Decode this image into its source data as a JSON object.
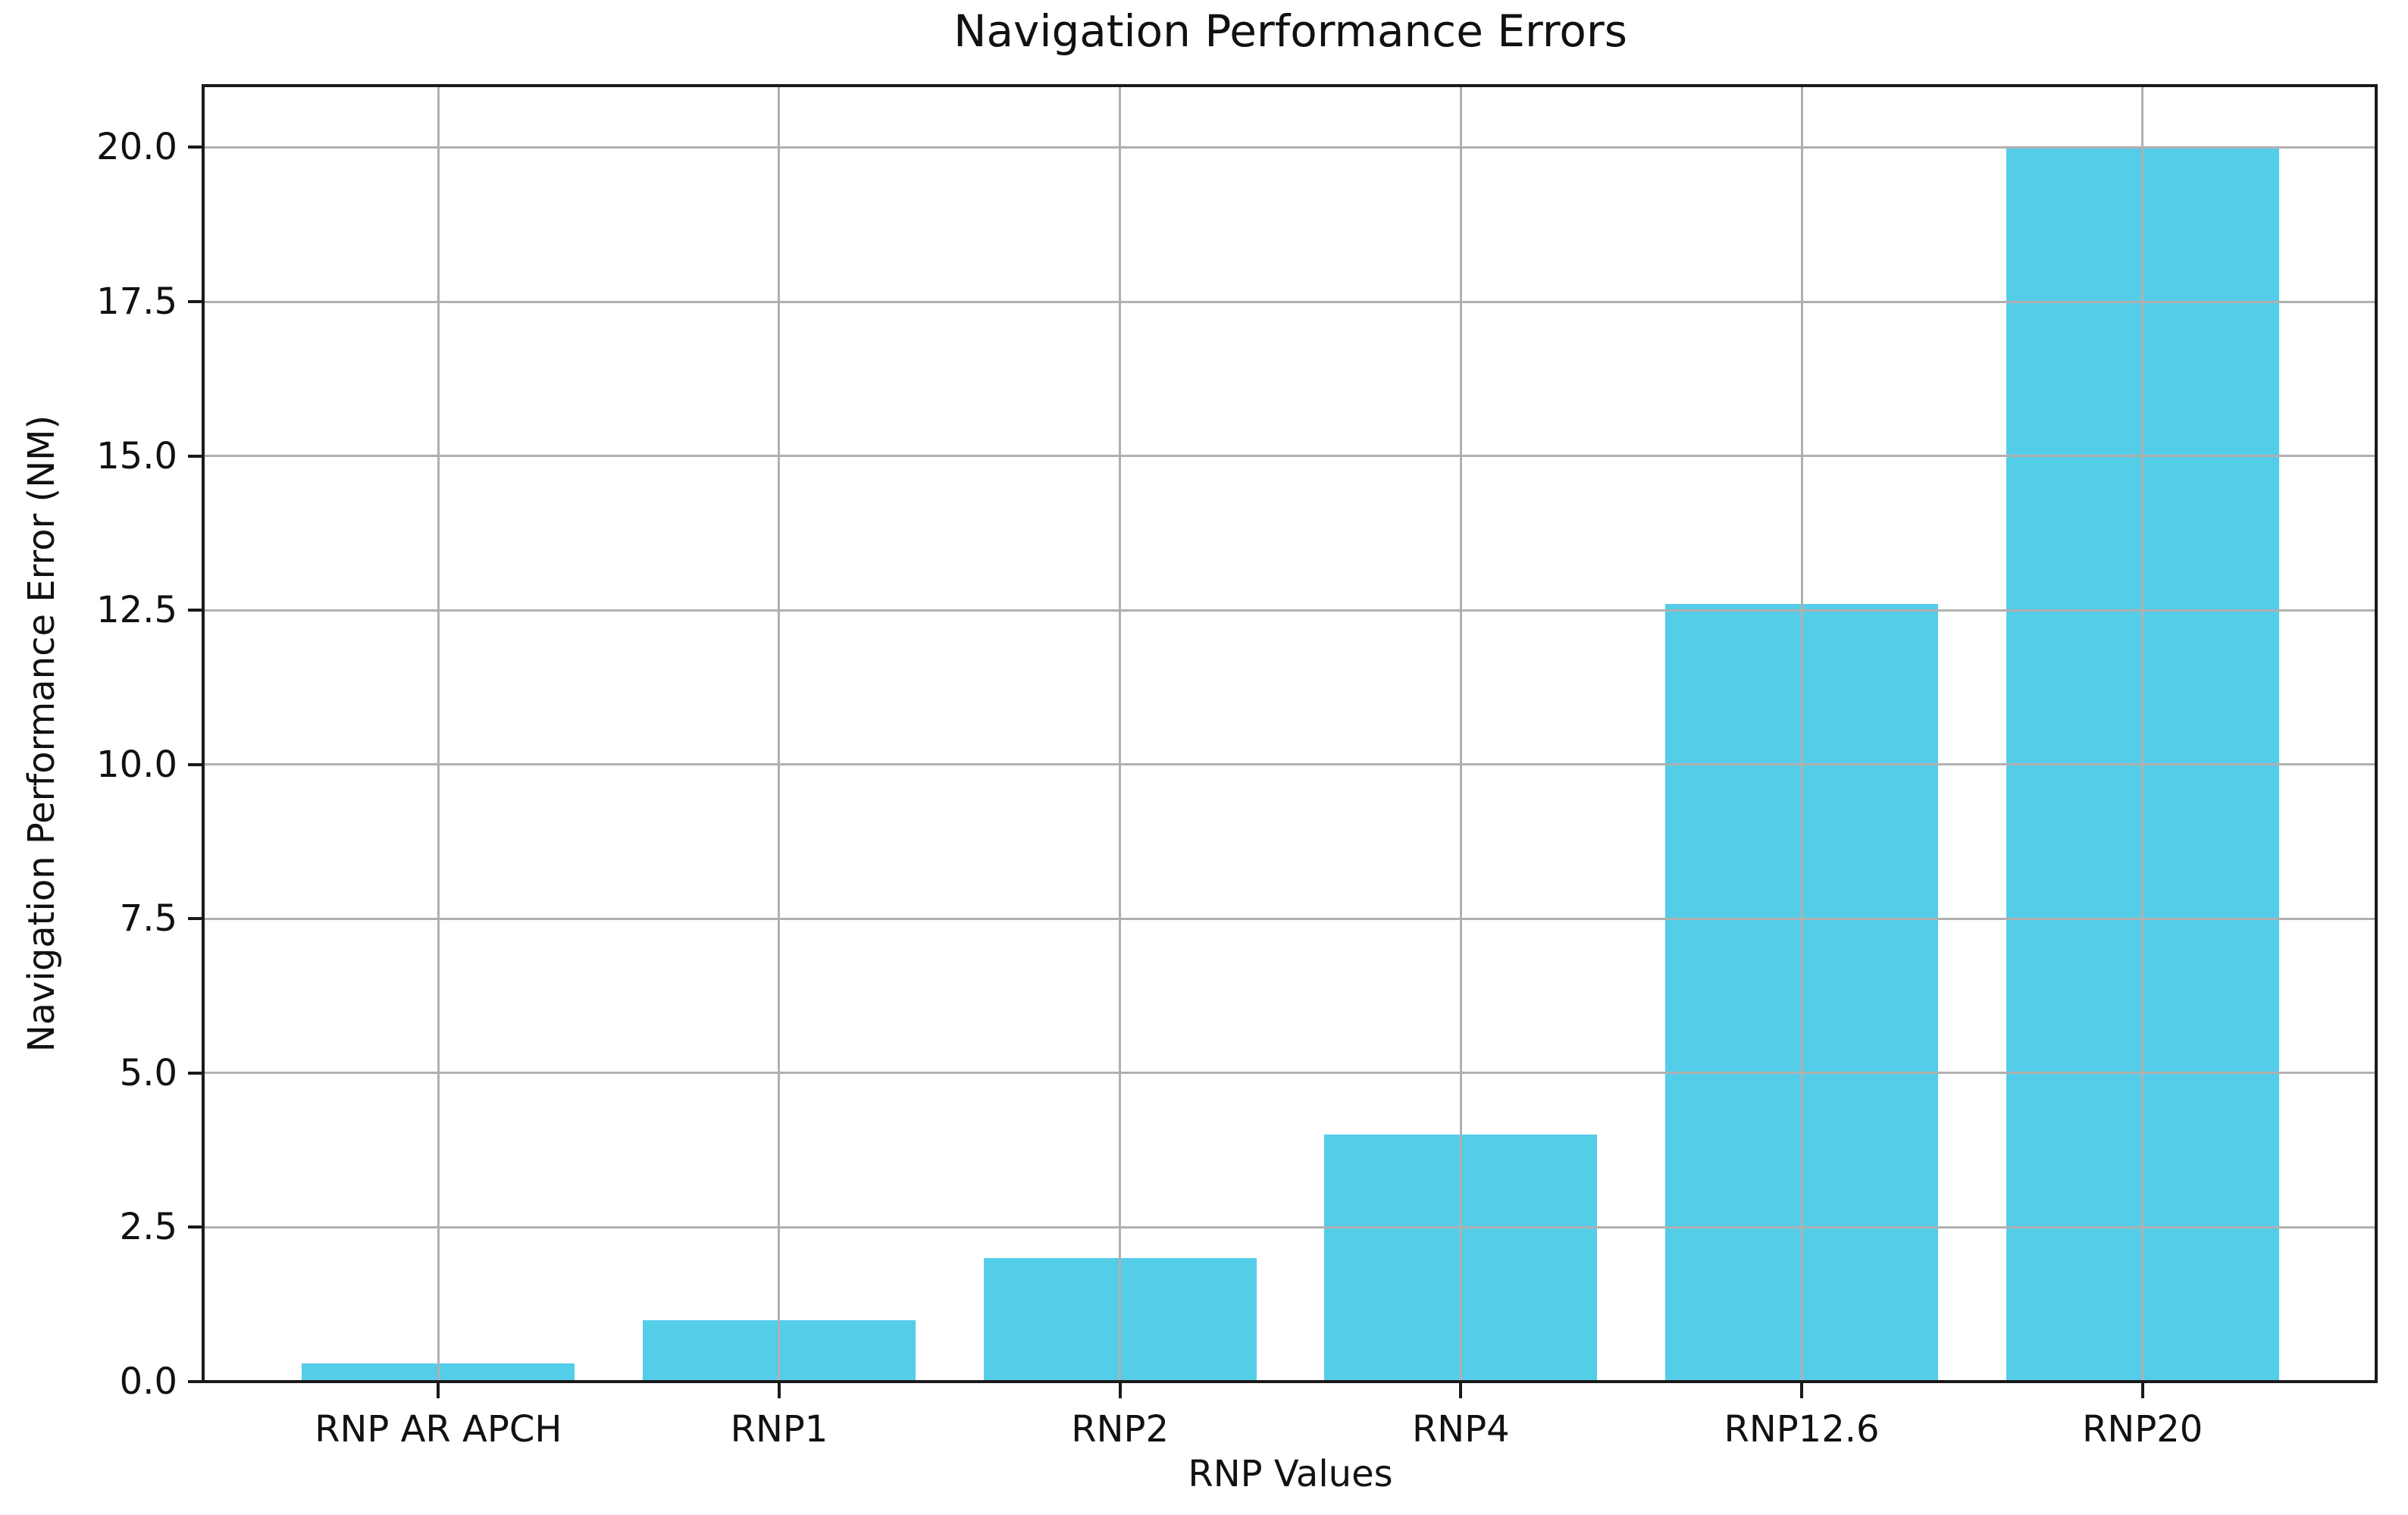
{
  "figure": {
    "background": "#ffffff"
  },
  "chart_data": {
    "type": "bar",
    "title": "Navigation Performance Errors",
    "xlabel": "RNP Values",
    "ylabel": "Navigation Performance Error (NM)",
    "categories": [
      "RNP AR APCH",
      "RNP1",
      "RNP2",
      "RNP4",
      "RNP12.6",
      "RNP20"
    ],
    "values": [
      0.3,
      1,
      2,
      4,
      12.6,
      20
    ],
    "yticks": [
      0,
      2.5,
      5,
      7.5,
      10,
      12.5,
      15,
      17.5,
      20
    ],
    "ytick_labels": [
      "0.0",
      "2.5",
      "5.0",
      "7.5",
      "10.0",
      "12.5",
      "15.0",
      "17.5",
      "20.0"
    ],
    "ylim": [
      0,
      21
    ],
    "grid": true,
    "legend_position": "none",
    "bar_color": "#54cde9",
    "grid_color": "#b0b0b0",
    "axis_color": "#1a1a1a",
    "text_color": "#111111"
  }
}
